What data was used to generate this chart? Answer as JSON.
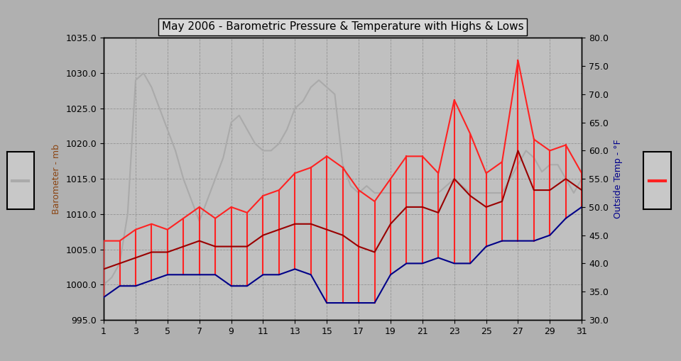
{
  "title": "May 2006 - Barometric Pressure & Temperature with Highs & Lows",
  "bg_color": "#b0b0b0",
  "plot_bg_color": "#c0c0c0",
  "grid_color": "#888888",
  "left_ylabel": "Barometer - mb",
  "right_ylabel": "Outside Temp - °F",
  "ylim_left": [
    995.0,
    1035.0
  ],
  "ylim_right": [
    30.0,
    80.0
  ],
  "xlim": [
    1,
    31
  ],
  "xticks": [
    1,
    3,
    5,
    7,
    9,
    11,
    13,
    15,
    17,
    19,
    21,
    23,
    25,
    27,
    29,
    31
  ],
  "yticks_left": [
    995.0,
    1000.0,
    1005.0,
    1010.0,
    1015.0,
    1020.0,
    1025.0,
    1030.0,
    1035.0
  ],
  "yticks_right": [
    30.0,
    35.0,
    40.0,
    45.0,
    50.0,
    55.0,
    60.0,
    65.0,
    70.0,
    75.0,
    80.0
  ],
  "pressure_color": "#aaaaaa",
  "temp_high_color": "#ff2222",
  "temp_low_color": "#000088",
  "temp_avg_color": "#990000",
  "pressure_linewidth": 1.5,
  "temp_linewidth": 1.5,
  "pressure_x": [
    1,
    1.5,
    2,
    2.5,
    3,
    3.5,
    4,
    4.5,
    5,
    5.5,
    6,
    6.5,
    7,
    7.5,
    8,
    8.5,
    9,
    9.5,
    10,
    10.5,
    11,
    11.5,
    12,
    12.5,
    13,
    13.5,
    14,
    14.5,
    15,
    15.5,
    16,
    16.5,
    17,
    17.5,
    18,
    18.5,
    19,
    19.5,
    20,
    20.5,
    21,
    21.5,
    22,
    22.5,
    23,
    23.5,
    24,
    24.5,
    25,
    25.5,
    26,
    26.5,
    27,
    27.5,
    28,
    28.5,
    29,
    29.5,
    30,
    30.5,
    31
  ],
  "pressure_y": [
    1000,
    1001,
    1003,
    1010,
    1029,
    1030,
    1028,
    1025,
    1022,
    1019,
    1015,
    1012,
    1009,
    1012,
    1015,
    1018,
    1023,
    1024,
    1022,
    1020,
    1019,
    1019,
    1020,
    1022,
    1025,
    1026,
    1028,
    1029,
    1028,
    1027,
    1017,
    1014,
    1013,
    1014,
    1013,
    1013,
    1013,
    1013,
    1013,
    1013,
    1013,
    1013,
    1013,
    1014,
    1015,
    1014,
    1013,
    1013,
    1013,
    1013,
    1013,
    1015,
    1017,
    1019,
    1018,
    1016,
    1017,
    1017,
    1015,
    1013,
    1015
  ],
  "temp_high_x": [
    1,
    2,
    3,
    4,
    5,
    6,
    7,
    8,
    9,
    10,
    11,
    12,
    13,
    14,
    15,
    16,
    17,
    18,
    19,
    20,
    21,
    22,
    23,
    24,
    25,
    26,
    27,
    28,
    29,
    30,
    31
  ],
  "temp_high_y": [
    44,
    44,
    46,
    47,
    46,
    48,
    50,
    48,
    50,
    49,
    52,
    53,
    56,
    57,
    59,
    57,
    53,
    51,
    55,
    59,
    59,
    56,
    69,
    63,
    56,
    58,
    76,
    62,
    60,
    61,
    56
  ],
  "temp_low_y": [
    34,
    36,
    36,
    37,
    38,
    38,
    38,
    38,
    36,
    36,
    38,
    38,
    39,
    38,
    33,
    33,
    33,
    33,
    38,
    40,
    40,
    41,
    40,
    40,
    43,
    44,
    44,
    44,
    45,
    48,
    50
  ],
  "temp_avg_y": [
    39,
    40,
    41,
    42,
    42,
    43,
    44,
    43,
    43,
    43,
    45,
    46,
    47,
    47,
    46,
    45,
    43,
    42,
    47,
    50,
    50,
    49,
    55,
    52,
    50,
    51,
    60,
    53,
    53,
    55,
    53
  ]
}
